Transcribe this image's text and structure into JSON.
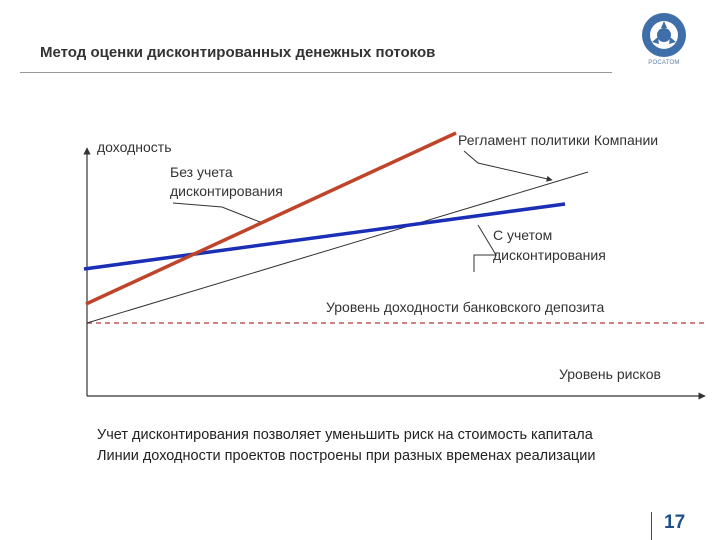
{
  "header": {
    "title": "Метод оценки дисконтированных денежных потоков",
    "logo_text": "РОСАТОМ"
  },
  "diagram": {
    "y_axis_label": "доходность",
    "x_axis_label": "Уровень рисков",
    "label_without_discounting": [
      "Без учета",
      "дисконтирования"
    ],
    "label_company_policy": "Регламент политики Компании",
    "label_with_discounting": [
      "С учетом",
      "дисконтирования"
    ],
    "label_bank_deposit": "Уровень доходности банковского депозита",
    "colors": {
      "without_discounting_line": "#c0442a",
      "with_discounting_line": "#1a2fb5",
      "deposit_line": "#b03a3a",
      "policy_line": "#333333"
    }
  },
  "footer": {
    "line1": "Учет дисконтирования позволяет уменьшить риск на стоимость капитала",
    "line2": "Линии доходности проектов построены при разных временах реализации"
  },
  "page_number": "17"
}
